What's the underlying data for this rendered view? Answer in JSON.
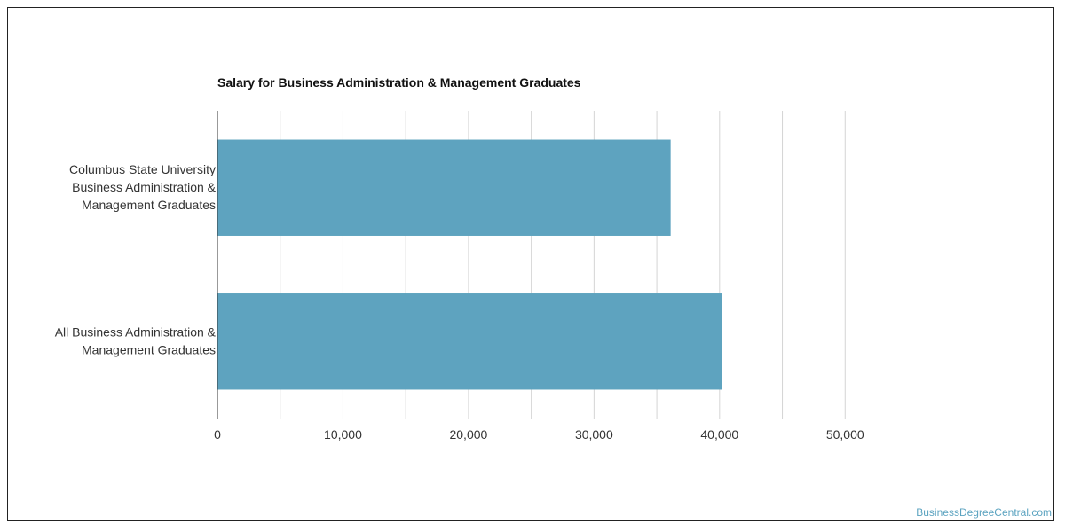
{
  "chart_data": {
    "type": "bar",
    "orientation": "horizontal",
    "title": "Salary for Business Administration & Management Graduates",
    "categories": [
      [
        "Columbus State University",
        "Business Administration &",
        "Management Graduates"
      ],
      [
        "All Business Administration &",
        "Management Graduates"
      ]
    ],
    "values": [
      36100,
      40200
    ],
    "xlim": [
      0,
      55000
    ],
    "xticks": [
      0,
      10000,
      20000,
      30000,
      40000,
      50000
    ],
    "xtick_labels": [
      "0",
      "10,000",
      "20,000",
      "30,000",
      "40,000",
      "50,000"
    ],
    "xlabel": "",
    "ylabel": "",
    "grid": true,
    "bar_color": "#5ea3bf",
    "grid_color": "#d4d4d4"
  },
  "watermark": "BusinessDegreeCentral.com"
}
